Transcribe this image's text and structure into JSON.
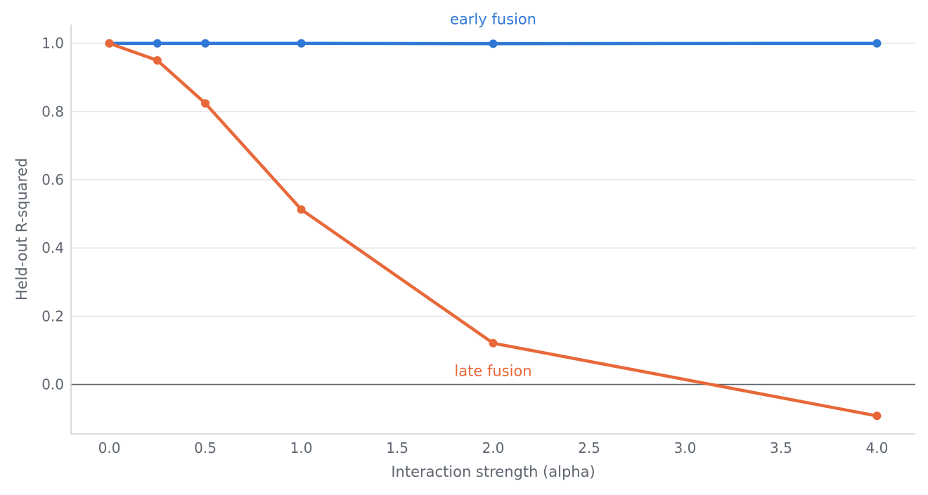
{
  "chart_data": {
    "type": "line",
    "xlabel": "Interaction strength (alpha)",
    "ylabel": "Held-out R-squared",
    "xlim": [
      -0.2,
      4.2
    ],
    "ylim": [
      -0.145,
      1.055
    ],
    "xticks": [
      "0.0",
      "0.5",
      "1.0",
      "1.5",
      "2.0",
      "2.5",
      "3.0",
      "3.5",
      "4.0"
    ],
    "yticks": [
      "0.0",
      "0.2",
      "0.4",
      "0.6",
      "0.8",
      "1.0"
    ],
    "grid": "horizontal",
    "reference_line_y": 0,
    "series": [
      {
        "name": "early fusion",
        "color": "#2f78d6",
        "x": [
          0,
          0.25,
          0.5,
          1.0,
          2.0,
          4.0
        ],
        "y": [
          1.0,
          1.0,
          1.0,
          1.0,
          0.999,
          1.0
        ]
      },
      {
        "name": "late fusion",
        "color": "#e8683a",
        "x": [
          0,
          0.25,
          0.5,
          1.0,
          2.0,
          4.0
        ],
        "y": [
          1.0,
          0.95,
          0.824,
          0.513,
          0.121,
          -0.092
        ]
      }
    ]
  }
}
